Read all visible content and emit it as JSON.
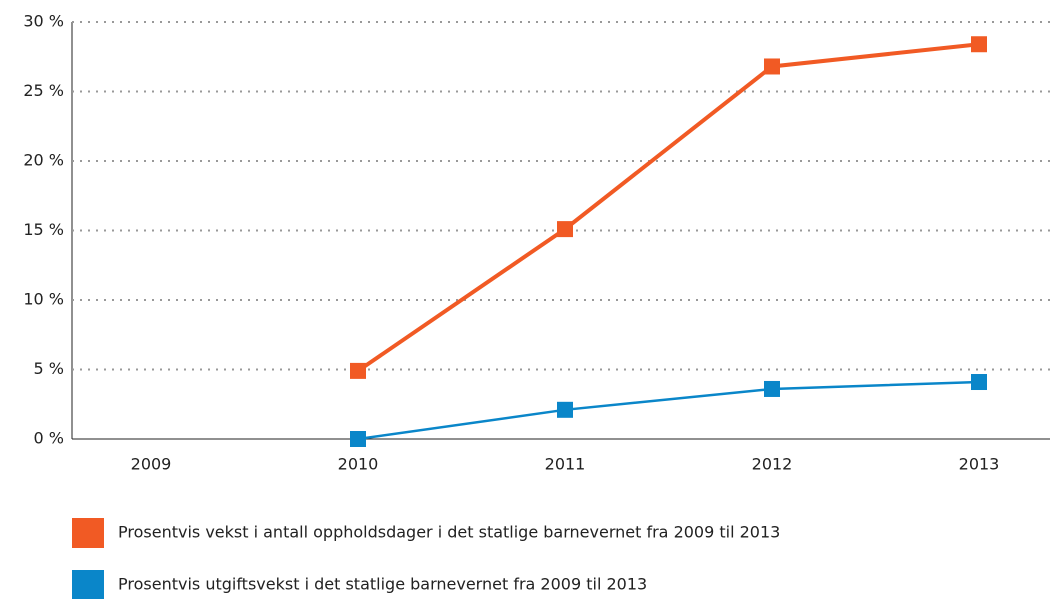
{
  "chart_data": {
    "type": "line",
    "categories": [
      "2009",
      "2010",
      "2011",
      "2012",
      "2013"
    ],
    "series": [
      {
        "name": "Prosentvis vekst i antall oppholdsdager i det statlige barnevernet fra 2009 til 2013",
        "color": "#f15a24",
        "values": [
          null,
          4.9,
          15.1,
          26.8,
          28.4
        ]
      },
      {
        "name": "Prosentvis utgiftsvekst i det statlige barnevernet fra 2009 til 2013",
        "color": "#0a86c9",
        "values": [
          null,
          0,
          2.1,
          3.6,
          4.1
        ]
      }
    ],
    "ylim": [
      0,
      30
    ],
    "yticks": [
      {
        "value": 0,
        "label": "0 %"
      },
      {
        "value": 5,
        "label": "5 %"
      },
      {
        "value": 10,
        "label": "10 %"
      },
      {
        "value": 15,
        "label": "15 %"
      },
      {
        "value": 20,
        "label": "20 %"
      },
      {
        "value": 25,
        "label": "25 %"
      },
      {
        "value": 30,
        "label": "30 %"
      }
    ],
    "grid": true
  }
}
